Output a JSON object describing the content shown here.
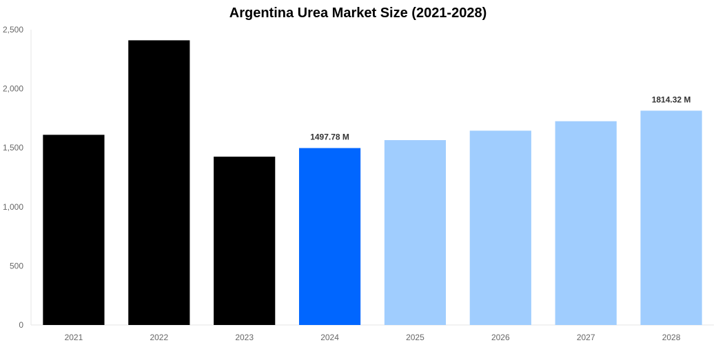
{
  "chart_data": {
    "type": "bar",
    "title": "Argentina Urea Market Size (2021-2028)",
    "xlabel": "",
    "ylabel": "",
    "categories": [
      "2021",
      "2022",
      "2023",
      "2024",
      "2025",
      "2026",
      "2027",
      "2028"
    ],
    "values": [
      1610,
      2410,
      1425,
      1497.78,
      1565,
      1645,
      1725,
      1814.32
    ],
    "ylim": [
      0,
      2500
    ],
    "yticks": [
      0,
      500,
      1000,
      1500,
      2000,
      2500
    ],
    "ytick_labels": [
      "0",
      "500",
      "1,000",
      "1,500",
      "2,000",
      "2,500"
    ],
    "bar_colors": [
      "#000000",
      "#000000",
      "#000000",
      "#0066ff",
      "#a0cdfe",
      "#a0cdfe",
      "#a0cdfe",
      "#a0cdfe"
    ],
    "data_labels": [
      {
        "category": "2024",
        "text": "1497.78 M"
      },
      {
        "category": "2028",
        "text": "1814.32 M"
      }
    ],
    "grid": false,
    "legend": "none"
  }
}
